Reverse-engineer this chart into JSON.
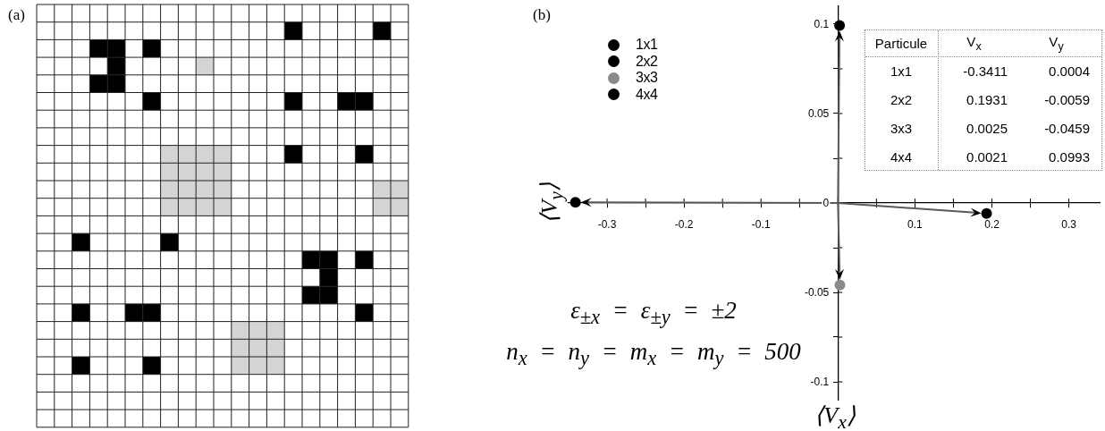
{
  "chart_data": [
    {
      "type": "other",
      "title": "(a)"
    },
    {
      "type": "scatter",
      "title": "(b)",
      "xlabel": "⟨V$_{x}$⟩",
      "ylabel": "⟨V$_{y}$⟩",
      "xlim": [
        -0.35,
        0.34
      ],
      "xticks": [
        -0.3,
        {
          "value": -0.25,
          "label": null
        },
        -0.2,
        {
          "value": -0.15,
          "label": null
        },
        -0.1,
        {
          "value": -0.05,
          "label": null
        },
        {
          "value": 0,
          "label": null
        },
        {
          "value": 0.05,
          "label": null
        },
        0.1,
        {
          "value": 0.15,
          "label": null
        },
        0.2,
        {
          "value": 0.25,
          "label": null
        },
        0.3
      ],
      "ylim": [
        -0.11,
        0.11
      ],
      "yticks": [
        -0.1,
        {
          "value": -0.075,
          "label": null
        },
        -0.05,
        {
          "value": -0.025,
          "label": null
        },
        0,
        {
          "value": 0.025,
          "label": null
        },
        0.05,
        {
          "value": 0.075,
          "label": null
        },
        0.1
      ],
      "marker": "circle",
      "legend": "top left",
      "annotations": [
        "ε$_{±x}$ = ε$_{±y}$ = ±2",
        "n$_{x}$ = n$_{y}$ = m$_{x}$ = m$_{y}$ = 500",
        "Particule",
        "V$_{x}$",
        "V$_{y}$",
        "1x1",
        "-0.3411",
        "0.0004",
        "2x2",
        "0.1931",
        "-0.0059",
        "3x3",
        "0.0025",
        "-0.0459",
        "4x4",
        "0.0021",
        "0.0993"
      ],
      "series": [
        {
          "name": "1x1",
          "color": "#000000",
          "x": [
            -0.3411
          ],
          "values": [
            0.0004
          ]
        },
        {
          "name": "2x2",
          "color": "#000000",
          "x": [
            0.1931
          ],
          "values": [
            -0.0059
          ]
        },
        {
          "name": "3x3",
          "color": "#8a8a8a",
          "x": [
            0.0025
          ],
          "values": [
            -0.0459
          ]
        },
        {
          "name": "4x4",
          "color": "#000000",
          "x": [
            0.0021
          ],
          "values": [
            0.0993
          ]
        }
      ]
    }
  ]
}
